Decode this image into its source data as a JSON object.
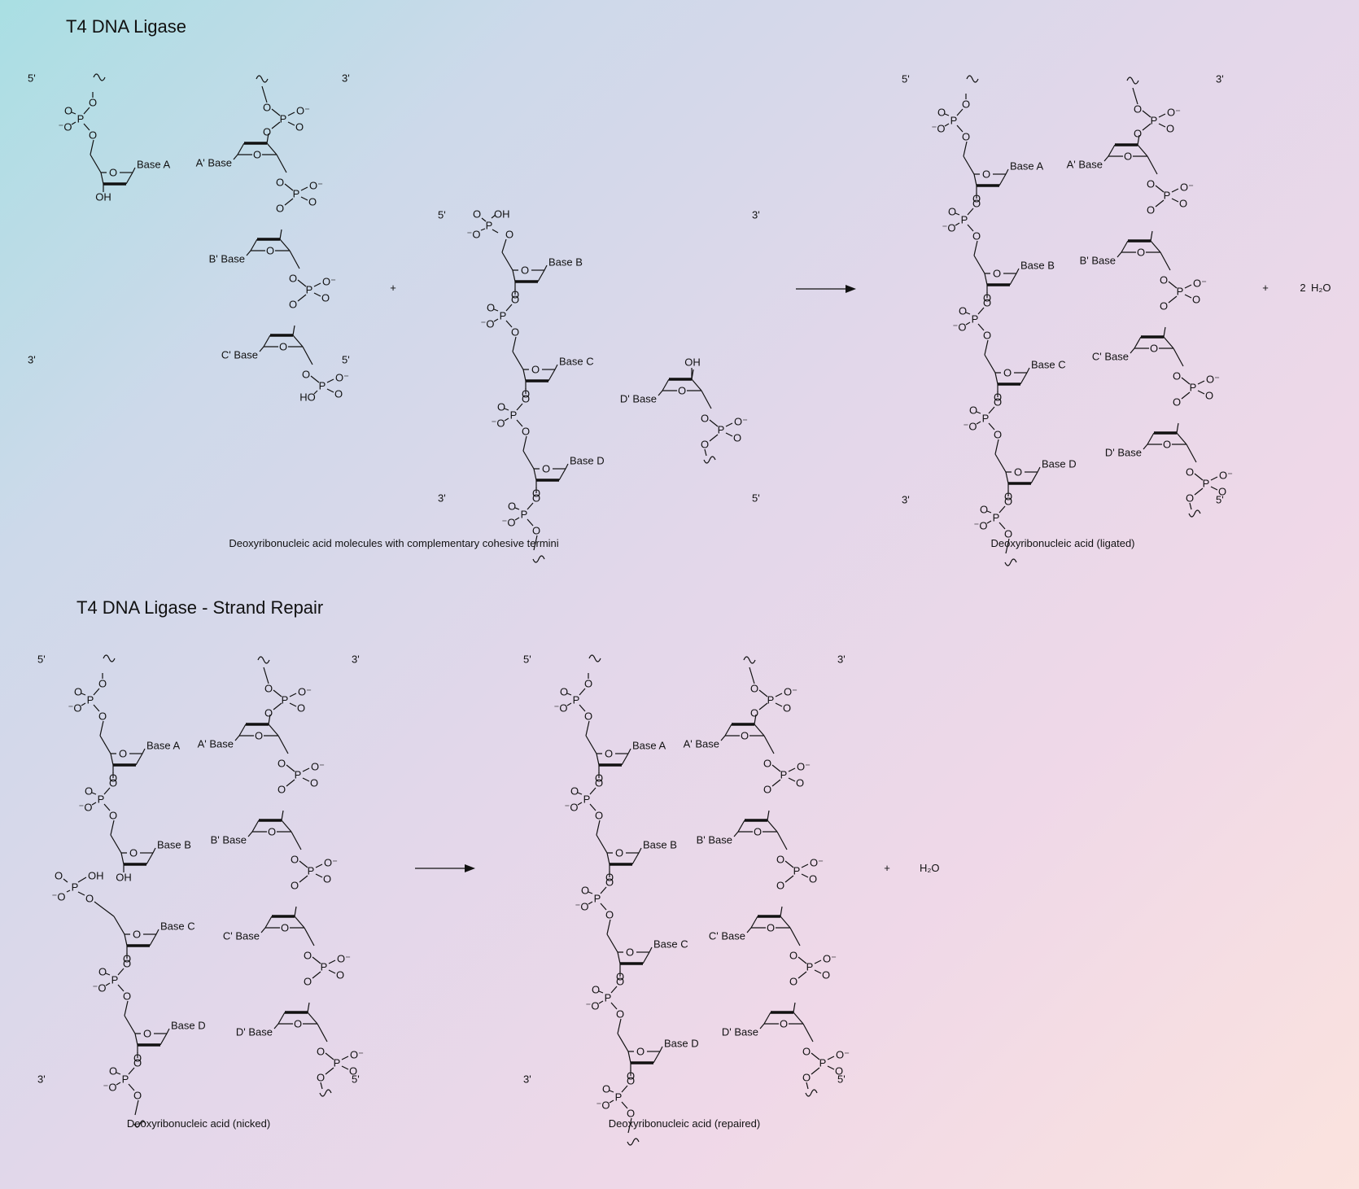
{
  "section1": {
    "title": "T4 DNA Ligase",
    "caption_left": "Deoxyribonucleic acid molecules with complementary cohesive termini",
    "caption_right": "Deoxyribonucleic acid (ligated)",
    "plus": "+",
    "product_coef": "2",
    "product": "H₂O"
  },
  "section2": {
    "title": "T4 DNA Ligase - Strand Repair",
    "caption_left": "Deoxyribonucleic acid (nicked)",
    "caption_right": "Deoxyribonucleic acid (repaired)",
    "plus": "+",
    "product": "H₂O"
  },
  "ends": {
    "five": "5'",
    "three": "3'"
  },
  "atoms": {
    "O": "O",
    "P": "P",
    "OH": "OH",
    "HO": "HO",
    "Ominus": "⁻O",
    "Ominus_r": "O⁻"
  },
  "bases": {
    "A": "Base A",
    "B": "Base B",
    "C": "Base C",
    "D": "Base D",
    "Ap": "A' Base",
    "Bp": "B' Base",
    "Cp": "C' Base",
    "Dp": "D' Base"
  }
}
